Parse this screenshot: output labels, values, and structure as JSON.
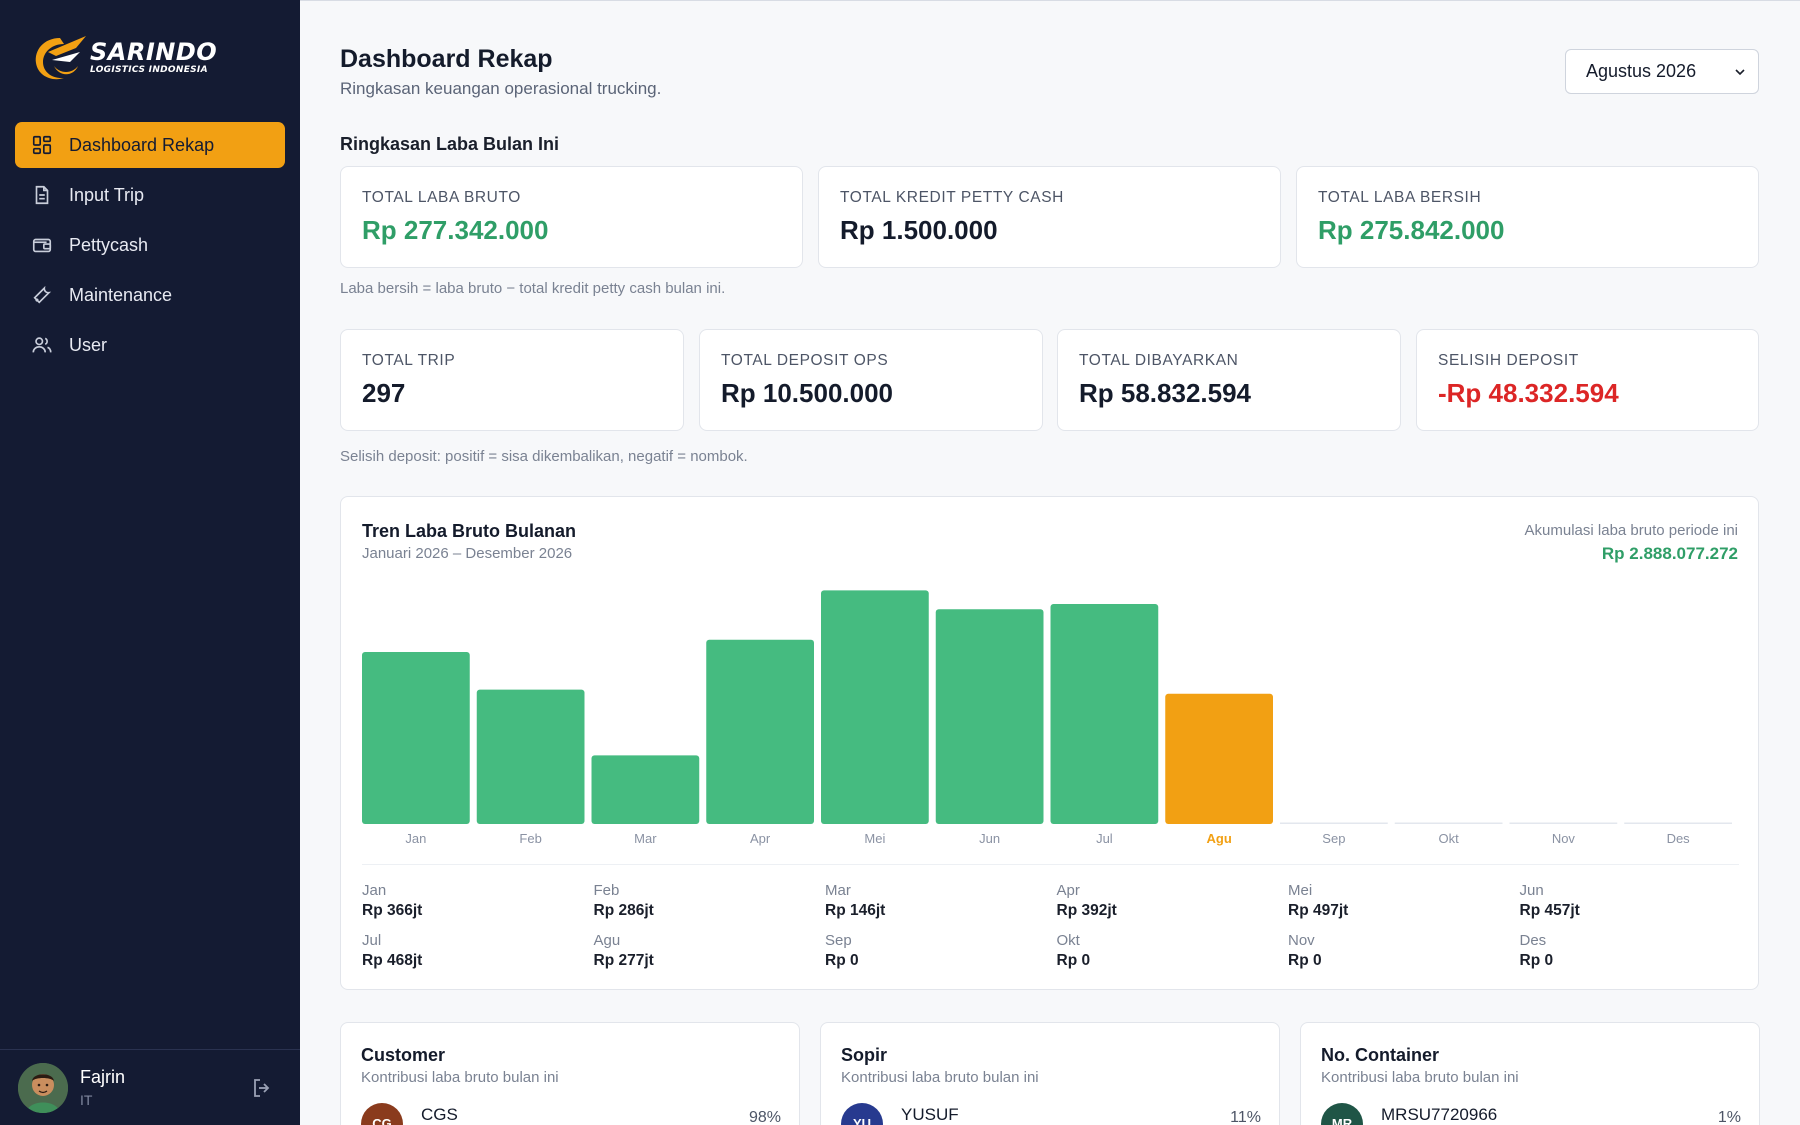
{
  "brand": {
    "name": "SARINDO",
    "tagline": "LOGISTICS INDONESIA",
    "accent": "#f2a013"
  },
  "sidebar": {
    "items": [
      {
        "label": "Dashboard Rekap",
        "icon": "dashboard-grid-icon",
        "active": true
      },
      {
        "label": "Input Trip",
        "icon": "document-icon",
        "active": false
      },
      {
        "label": "Pettycash",
        "icon": "wallet-icon",
        "active": false
      },
      {
        "label": "Maintenance",
        "icon": "wrench-icon",
        "active": false
      },
      {
        "label": "User",
        "icon": "users-icon",
        "active": false
      }
    ],
    "user": {
      "name": "Fajrin",
      "role": "IT"
    }
  },
  "header": {
    "title": "Dashboard Rekap",
    "subtitle": "Ringkasan keuangan operasional trucking.",
    "period_select": "Agustus 2026"
  },
  "profit_summary": {
    "title": "Ringkasan Laba Bulan Ini",
    "cards": [
      {
        "label": "TOTAL LABA BRUTO",
        "value": "Rp 277.342.000",
        "tone": "green"
      },
      {
        "label": "TOTAL KREDIT PETTY CASH",
        "value": "Rp 1.500.000",
        "tone": "default"
      },
      {
        "label": "TOTAL LABA BERSIH",
        "value": "Rp 275.842.000",
        "tone": "green"
      }
    ],
    "note": "Laba bersih = laba bruto − total kredit petty cash bulan ini."
  },
  "ops_summary": {
    "cards": [
      {
        "label": "TOTAL TRIP",
        "value": "297",
        "tone": "default"
      },
      {
        "label": "TOTAL DEPOSIT OPS",
        "value": "Rp 10.500.000",
        "tone": "default"
      },
      {
        "label": "TOTAL DIBAYARKAN",
        "value": "Rp 58.832.594",
        "tone": "default"
      },
      {
        "label": "SELISIH DEPOSIT",
        "value": "-Rp 48.332.594",
        "tone": "red"
      }
    ],
    "note": "Selisih deposit: positif = sisa dikembalikan, negatif = nombok."
  },
  "trend": {
    "title": "Tren Laba Bruto Bulanan",
    "subtitle": "Januari 2026 – Desember 2026",
    "accumulation_label": "Akumulasi laba bruto periode ini",
    "accumulation_value": "Rp 2.888.077.272",
    "month_values": [
      {
        "month": "Jan",
        "value": "Rp 366jt"
      },
      {
        "month": "Feb",
        "value": "Rp 286jt"
      },
      {
        "month": "Mar",
        "value": "Rp 146jt"
      },
      {
        "month": "Apr",
        "value": "Rp 392jt"
      },
      {
        "month": "Mei",
        "value": "Rp 497jt"
      },
      {
        "month": "Jun",
        "value": "Rp 457jt"
      },
      {
        "month": "Jul",
        "value": "Rp 468jt"
      },
      {
        "month": "Agu",
        "value": "Rp 277jt"
      },
      {
        "month": "Sep",
        "value": "Rp 0"
      },
      {
        "month": "Okt",
        "value": "Rp 0"
      },
      {
        "month": "Nov",
        "value": "Rp 0"
      },
      {
        "month": "Des",
        "value": "Rp 0"
      }
    ]
  },
  "chart_data": {
    "type": "bar",
    "categories": [
      "Jan",
      "Feb",
      "Mar",
      "Apr",
      "Mei",
      "Jun",
      "Jul",
      "Agu",
      "Sep",
      "Okt",
      "Nov",
      "Des"
    ],
    "values": [
      366,
      286,
      146,
      392,
      497,
      457,
      468,
      277,
      0,
      0,
      0,
      0
    ],
    "highlight": "Agu",
    "bar_color": "#45bb80",
    "highlight_color": "#f2a013",
    "ylim": [
      0,
      500
    ],
    "grid": false
  },
  "contributions": [
    {
      "title": "Customer",
      "subtitle": "Kontribusi laba bruto bulan ini",
      "initials": "CG",
      "name": "CGS",
      "pct": "98%",
      "color": "#8a3b1d"
    },
    {
      "title": "Sopir",
      "subtitle": "Kontribusi laba bruto bulan ini",
      "initials": "YU",
      "name": "YUSUF",
      "pct": "11%",
      "color": "#273a8f"
    },
    {
      "title": "No. Container",
      "subtitle": "Kontribusi laba bruto bulan ini",
      "initials": "MR",
      "name": "MRSU7720966",
      "pct": "1%",
      "color": "#1f5546"
    }
  ]
}
